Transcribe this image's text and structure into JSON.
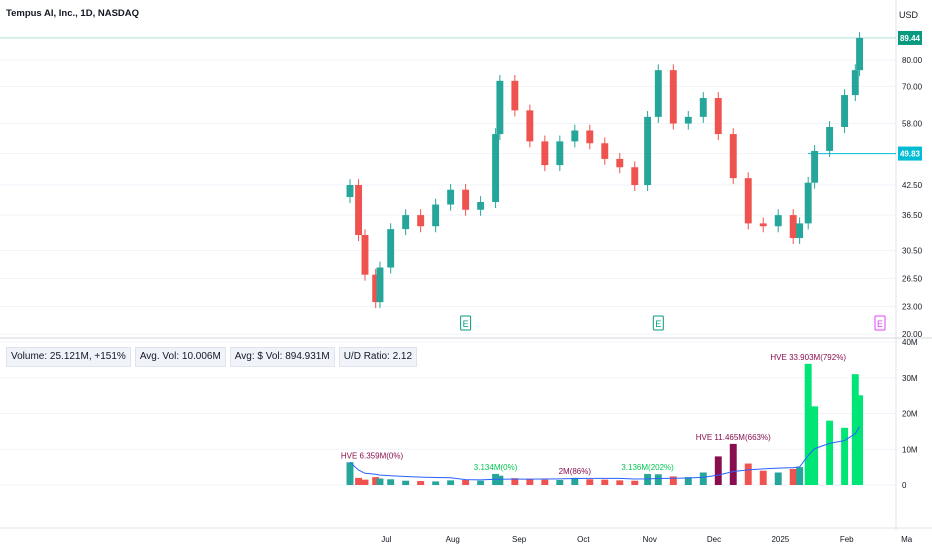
{
  "header": {
    "title": "Tempus AI, Inc., 1D, NASDAQ",
    "currency": "USD"
  },
  "colors": {
    "up": "#26a69a",
    "down": "#ef5350",
    "last_price_bg": "#089981",
    "marker_line": "#00bcd4",
    "hve_text": "#880e4f",
    "label_green": "#00c853",
    "earnings_green": "#089981",
    "earnings_purple": "#e040fb",
    "avg_line": "#2962ff"
  },
  "price_axis": {
    "ticks": [
      20.0,
      23.0,
      26.5,
      30.5,
      36.5,
      42.5,
      49.83,
      58.0,
      70.0,
      80.0
    ],
    "tick_labels": [
      "20.00",
      "23.00",
      "26.50",
      "30.50",
      "36.50",
      "42.50",
      "49.83",
      "58.00",
      "70.00",
      "80.00"
    ],
    "scale": "log"
  },
  "price_badges": {
    "last": "89.44",
    "marker": "49.83"
  },
  "volume_axis": {
    "ticks": [
      0,
      10,
      20,
      30,
      40
    ],
    "tick_labels": [
      "0",
      "10M",
      "20M",
      "30M",
      "40M"
    ]
  },
  "time_axis": {
    "labels": [
      "Jul",
      "Aug",
      "Sep",
      "Oct",
      "Nov",
      "Dec",
      "2025",
      "Feb",
      "Ma"
    ]
  },
  "volume_stats": [
    "Volume: 25.121M, +151%",
    "Avg. Vol: 10.006M",
    "Avg: $ Vol: 894.931M",
    "U/D Ratio: 2.12"
  ],
  "earnings_markers": [
    "E",
    "E",
    "E"
  ],
  "volume_labels": [
    "HVE 6.359M(0%)",
    "3.134M(0%)",
    "2M(86%)",
    "3.136M(202%)",
    "HVE 11.465M(663%)",
    "HVE 33.903M(792%)"
  ],
  "chart_data": {
    "type": "candlestick",
    "title": "Tempus AI, Inc., 1D, NASDAQ",
    "series": [
      {
        "name": "",
        "points": [
          [
            "2024-06-14",
            40.0,
            42.5
          ],
          [
            "2024-06-18",
            42.5,
            33.0
          ],
          [
            "2024-06-21",
            33.0,
            27.0
          ],
          [
            "2024-06-26",
            27.0,
            23.5
          ],
          [
            "2024-06-28",
            23.5,
            28.0
          ],
          [
            "2024-07-03",
            28.0,
            34.0
          ],
          [
            "2024-07-10",
            34.0,
            36.5
          ],
          [
            "2024-07-17",
            36.5,
            34.5
          ],
          [
            "2024-07-24",
            34.5,
            38.5
          ],
          [
            "2024-07-31",
            38.5,
            41.5
          ],
          [
            "2024-08-07",
            41.5,
            37.5
          ],
          [
            "2024-08-14",
            37.5,
            39.0
          ],
          [
            "2024-08-21",
            39.0,
            55.0
          ],
          [
            "2024-08-23",
            55.0,
            72.0
          ],
          [
            "2024-08-30",
            72.0,
            62.0
          ],
          [
            "2024-09-06",
            62.0,
            53.0
          ],
          [
            "2024-09-13",
            53.0,
            47.0
          ],
          [
            "2024-09-20",
            47.0,
            53.0
          ],
          [
            "2024-09-27",
            53.0,
            56.0
          ],
          [
            "2024-10-04",
            56.0,
            52.5
          ],
          [
            "2024-10-11",
            52.5,
            48.5
          ],
          [
            "2024-10-18",
            48.5,
            46.5
          ],
          [
            "2024-10-25",
            46.5,
            42.5
          ],
          [
            "2024-10-31",
            42.5,
            60.0
          ],
          [
            "2024-11-05",
            60.0,
            76.0
          ],
          [
            "2024-11-12",
            76.0,
            58.0
          ],
          [
            "2024-11-19",
            58.0,
            60.0
          ],
          [
            "2024-11-26",
            60.0,
            66.0
          ],
          [
            "2024-12-03",
            66.0,
            55.0
          ],
          [
            "2024-12-10",
            55.0,
            44.0
          ],
          [
            "2024-12-17",
            44.0,
            35.0
          ],
          [
            "2024-12-24",
            35.0,
            34.5
          ],
          [
            "2024-12-31",
            34.5,
            36.5
          ],
          [
            "2025-01-07",
            36.5,
            32.5
          ],
          [
            "2025-01-10",
            32.5,
            35.0
          ],
          [
            "2025-01-14",
            35.0,
            43.0
          ],
          [
            "2025-01-17",
            43.0,
            50.5
          ],
          [
            "2025-01-24",
            50.5,
            57.0
          ],
          [
            "2025-01-31",
            57.0,
            67.0
          ],
          [
            "2025-02-05",
            67.0,
            76.0
          ],
          [
            "2025-02-07",
            76.0,
            89.44
          ]
        ]
      }
    ],
    "volume": {
      "ylim": [
        0,
        40
      ],
      "unit": "M",
      "values": [
        6.36,
        2.0,
        1.5,
        2.2,
        1.8,
        1.6,
        1.2,
        1.1,
        1.0,
        1.3,
        1.4,
        1.2,
        3.1,
        2.6,
        1.9,
        1.7,
        1.5,
        1.4,
        2.0,
        1.6,
        1.5,
        1.3,
        1.2,
        3.1,
        3.0,
        2.4,
        2.2,
        3.5,
        8.0,
        11.5,
        6.0,
        4.0,
        3.5,
        4.5,
        5.0,
        33.9,
        22.0,
        18.0,
        16.0,
        31.0,
        25.1
      ]
    },
    "xlabel": "",
    "ylabel": ""
  }
}
